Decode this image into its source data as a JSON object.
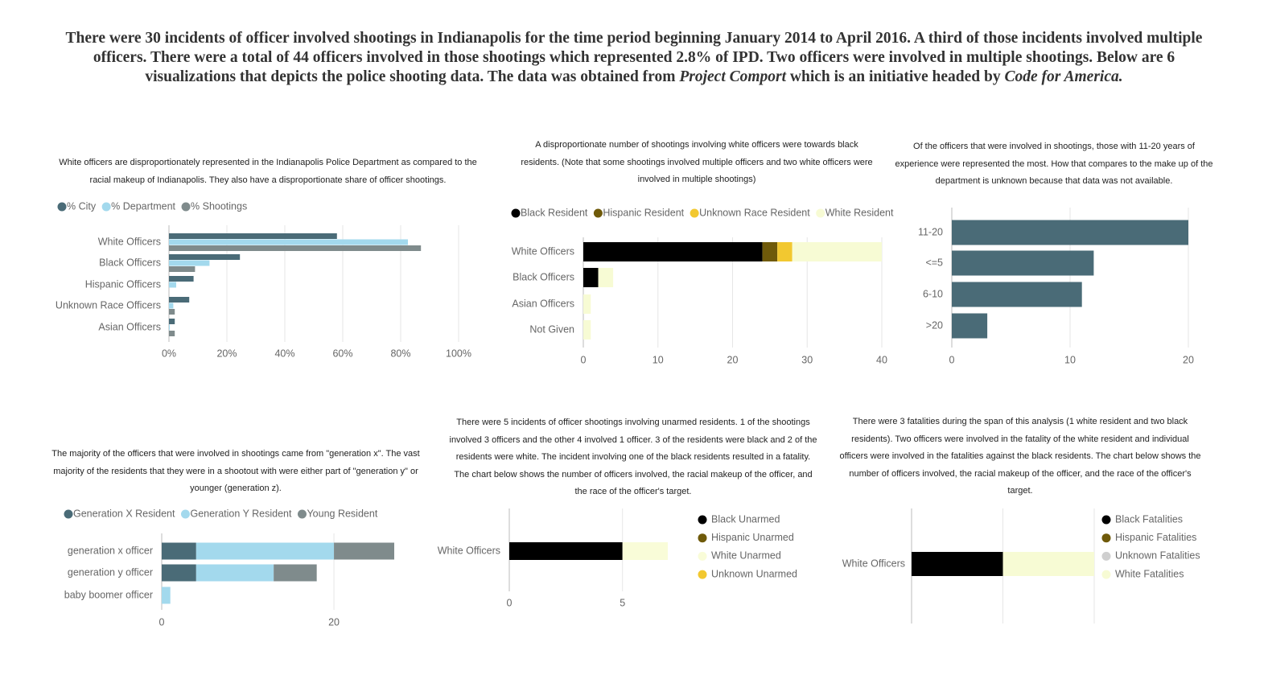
{
  "header": {
    "parts": [
      "There were 30 incidents of officer involved shootings in Indianapolis for the time period beginning January 2014 to April 2016. A third of those incidents involved multiple officers. There were a total of 44 officers involved in those shootings which represented 2.8% of IPD. Two officers were involved in multiple shootings. Below are 6 visualizations that depicts the police shooting data. The data was obtained from ",
      "Project Comport",
      " which is an initiative headed by ",
      "Code for America."
    ]
  },
  "chart_data": [
    {
      "type": "bar",
      "description": "White officers are disproportionately represented in the Indianapolis Police Department as compared to the racial makeup of Indianapolis. They also have a disproportionate share of officer shootings.",
      "categories": [
        "White Officers",
        "Black Officers",
        "Hispanic Officers",
        "Unknown Race Officers",
        "Asian Officers"
      ],
      "series": [
        {
          "name": "% City",
          "color": "#4a6b77",
          "values": [
            58,
            24.5,
            8.5,
            7,
            2
          ]
        },
        {
          "name": "% Department",
          "color": "#a3d9ed",
          "values": [
            82.5,
            14,
            2.5,
            1.5,
            0.3
          ]
        },
        {
          "name": "% Shootings",
          "color": "#7f8b8c",
          "values": [
            87,
            9,
            0,
            2,
            2
          ]
        }
      ],
      "xlim": [
        0,
        100
      ],
      "xticks": [
        {
          "value": 0,
          "label": "0%"
        },
        {
          "value": 20,
          "label": "20%"
        },
        {
          "value": 40,
          "label": "40%"
        },
        {
          "value": 60,
          "label": "60%"
        },
        {
          "value": 80,
          "label": "80%"
        },
        {
          "value": 100,
          "label": "100%"
        }
      ],
      "grid": true,
      "legend": "top"
    },
    {
      "type": "stacked_bar",
      "description": "A disproportionate number of shootings involving white officers were towards black residents. (Note that some shootings involved multiple officers and two white officers were involved in multiple shootings)",
      "categories": [
        "White Officers",
        "Black Officers",
        "Asian Officers",
        "Not Given"
      ],
      "series": [
        {
          "name": "Black Resident",
          "color": "#000000",
          "values": [
            24,
            2,
            0,
            0
          ]
        },
        {
          "name": "Hispanic Resident",
          "color": "#6f5a0a",
          "values": [
            2,
            0,
            0,
            0
          ]
        },
        {
          "name": "Unknown Race Resident",
          "color": "#f2c830",
          "values": [
            2,
            0,
            0,
            0
          ]
        },
        {
          "name": "White Resident",
          "color": "#f7fbd4",
          "values": [
            12,
            2,
            1,
            1
          ]
        }
      ],
      "xlim": [
        0,
        40
      ],
      "xticks": [
        0,
        10,
        20,
        30,
        40
      ],
      "grid": true,
      "legend": "top"
    },
    {
      "type": "bar",
      "description": "Of the officers that were involved in shootings, those with 11-20 years of experience were represented the most. How that compares to the make up of the department is unknown because that data was not available.",
      "categories": [
        "11-20",
        "<=5",
        "6-10",
        ">20"
      ],
      "values": [
        20,
        12,
        11,
        3
      ],
      "color": "#4a6b77",
      "xlim": [
        0,
        20
      ],
      "xticks": [
        0,
        10,
        20
      ],
      "grid": true
    },
    {
      "type": "stacked_bar",
      "description": "The majority of the officers that were involved in shootings came from \"generation x\". The vast majority of the residents that they were in a shootout with were either part of \"generation y\" or younger (generation z).",
      "categories": [
        "generation x officer",
        "generation y officer",
        "baby boomer officer"
      ],
      "series": [
        {
          "name": "Generation X Resident",
          "color": "#4a6b77",
          "values": [
            4,
            4,
            0
          ]
        },
        {
          "name": "Generation Y Resident",
          "color": "#a3d9ed",
          "values": [
            16,
            9,
            1
          ]
        },
        {
          "name": "Young Resident",
          "color": "#7f8b8c",
          "values": [
            7,
            5,
            0
          ]
        }
      ],
      "xlim": [
        0,
        27
      ],
      "xticks": [
        0,
        20
      ],
      "grid": true,
      "legend": "top"
    },
    {
      "type": "stacked_bar",
      "description": "There were 5 incidents of officer shootings involving unarmed residents. 1 of the shootings involved 3 officers and the other 4 involved 1 officer. 3 of the residents were black and 2 of the residents were white. The incident involving one of the black residents resulted in a fatality. The chart below shows the number of officers involved, the racial makeup of the officer, and the race of the officer's target.",
      "categories": [
        "White Officers"
      ],
      "series": [
        {
          "name": "Black Unarmed",
          "color": "#000000",
          "values": [
            5
          ]
        },
        {
          "name": "Hispanic Unarmed",
          "color": "#6f5a0a",
          "values": [
            0
          ]
        },
        {
          "name": "White Unarmed",
          "color": "#f9fcd8",
          "values": [
            2
          ]
        },
        {
          "name": "Unknown Unarmed",
          "color": "#f2c830",
          "values": [
            0
          ]
        }
      ],
      "xlim": [
        0,
        7
      ],
      "xticks": [
        0,
        5
      ],
      "grid": true,
      "legend": "right"
    },
    {
      "type": "stacked_bar",
      "description": "There were 3 fatalities during the span of this analysis (1 white resident and two black residents). Two officers were involved in the fatality of the white resident and individual officers were involved in the fatalities against the black residents. The chart below shows the number of officers involved, the racial makeup of the officer, and the race of the officer's target.",
      "categories": [
        "White Officers"
      ],
      "series": [
        {
          "name": "Black Fatalities",
          "color": "#000000",
          "values": [
            2
          ]
        },
        {
          "name": "Hispanic Fatalities",
          "color": "#6f5a0a",
          "values": [
            0
          ]
        },
        {
          "name": "Unknown Fatalities",
          "color": "#cfcfcf",
          "values": [
            0
          ]
        },
        {
          "name": "White Fatalities",
          "color": "#f7fbd4",
          "values": [
            2
          ]
        }
      ],
      "xlim": [
        0,
        4
      ],
      "xticks": [
        0,
        2,
        4
      ],
      "grid": true,
      "legend": "right"
    }
  ]
}
